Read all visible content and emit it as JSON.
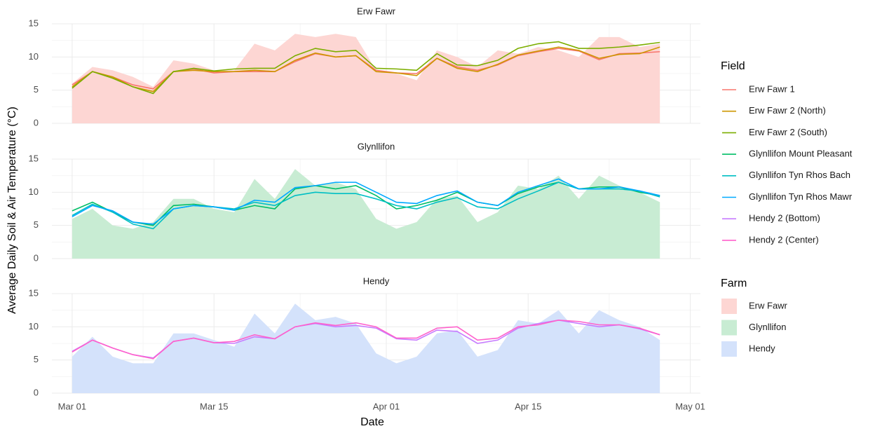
{
  "ylabel": "Average Daily Soil & Air Temperature (°C)",
  "xlabel": "Date",
  "legend": {
    "line_title": "Field",
    "area_title": "Farm"
  },
  "chart_data": [
    {
      "type": "line",
      "title": "Erw Fawr",
      "xlim": [
        "Feb 27",
        "May 02"
      ],
      "xticks": [
        "Mar 01",
        "Mar 15",
        "Apr 01",
        "Apr 15",
        "May 01"
      ],
      "ylim": [
        0,
        15
      ],
      "yticks": [
        0,
        5,
        10,
        15
      ],
      "grid": true,
      "x": [
        "Mar 01",
        "Mar 03",
        "Mar 05",
        "Mar 07",
        "Mar 09",
        "Mar 11",
        "Mar 13",
        "Mar 15",
        "Mar 17",
        "Mar 19",
        "Mar 21",
        "Mar 23",
        "Mar 25",
        "Mar 27",
        "Mar 29",
        "Mar 31",
        "Apr 02",
        "Apr 04",
        "Apr 06",
        "Apr 08",
        "Apr 10",
        "Apr 12",
        "Apr 14",
        "Apr 16",
        "Apr 18",
        "Apr 20",
        "Apr 22",
        "Apr 24",
        "Apr 26",
        "Apr 28"
      ],
      "area": {
        "name": "Erw Fawr",
        "color": "#fdd6d3",
        "values": [
          6,
          8.5,
          8,
          7,
          5.5,
          9.5,
          9,
          8,
          8,
          12,
          11,
          13.5,
          13,
          13.5,
          13,
          8,
          7.5,
          6.5,
          11,
          10,
          8.5,
          11,
          10.5,
          11.5,
          11,
          10,
          13,
          13,
          11.5,
          12
        ]
      },
      "series": [
        {
          "name": "Erw Fawr 1",
          "color": "#F8766D",
          "values": [
            5.8,
            7.8,
            7,
            5.8,
            5.2,
            7.8,
            8.2,
            7.6,
            7.8,
            7.8,
            7.8,
            9.3,
            10.5,
            10,
            10.2,
            8,
            7.6,
            7.5,
            9.8,
            8.5,
            8,
            8.8,
            10.2,
            10.8,
            11.3,
            10.9,
            9.6,
            10.5,
            10.6,
            10.8
          ]
        },
        {
          "name": "Erw Fawr 2 (North)",
          "color": "#CD9600",
          "values": [
            5.5,
            7.8,
            7,
            5.5,
            4.8,
            7.8,
            8,
            7.8,
            7.8,
            8,
            7.8,
            9.5,
            10.6,
            10,
            10.2,
            7.8,
            7.6,
            7.2,
            9.8,
            8.3,
            7.8,
            8.9,
            10.3,
            10.9,
            11.5,
            11,
            9.8,
            10.4,
            10.5,
            11.5
          ]
        },
        {
          "name": "Erw Fawr 2 (South)",
          "color": "#7CAE00",
          "values": [
            5.3,
            7.8,
            6.8,
            5.5,
            4.5,
            7.8,
            8.3,
            7.9,
            8.2,
            8.3,
            8.3,
            10.2,
            11.3,
            10.8,
            11,
            8.3,
            8.2,
            8,
            10.5,
            8.8,
            8.7,
            9.5,
            11.3,
            12,
            12.3,
            11.3,
            11.3,
            11.5,
            11.8,
            12.2
          ]
        }
      ]
    },
    {
      "type": "line",
      "title": "Glynllifon",
      "xlim": [
        "Feb 27",
        "May 02"
      ],
      "xticks": [
        "Mar 01",
        "Mar 15",
        "Apr 01",
        "Apr 15",
        "May 01"
      ],
      "ylim": [
        0,
        15
      ],
      "yticks": [
        0,
        5,
        10,
        15
      ],
      "grid": true,
      "x": [
        "Mar 01",
        "Mar 03",
        "Mar 05",
        "Mar 07",
        "Mar 09",
        "Mar 11",
        "Mar 13",
        "Mar 15",
        "Mar 17",
        "Mar 19",
        "Mar 21",
        "Mar 23",
        "Mar 25",
        "Mar 27",
        "Mar 29",
        "Mar 31",
        "Apr 02",
        "Apr 04",
        "Apr 06",
        "Apr 08",
        "Apr 10",
        "Apr 12",
        "Apr 14",
        "Apr 16",
        "Apr 18",
        "Apr 20",
        "Apr 22",
        "Apr 24",
        "Apr 26",
        "Apr 28"
      ],
      "area": {
        "name": "Glynllifon",
        "color": "#c8ecd3",
        "values": [
          6,
          7.5,
          5,
          4.5,
          5.5,
          9,
          9,
          7.5,
          7,
          12,
          9,
          13.5,
          11,
          11.5,
          10.5,
          6,
          4.5,
          5.5,
          9,
          9.5,
          5.5,
          7,
          11,
          10.5,
          12.5,
          9,
          12.5,
          11,
          10,
          8.5
        ]
      },
      "series": [
        {
          "name": "Glynllifon Mount Pleasant",
          "color": "#00BE67",
          "values": [
            7.2,
            8.5,
            7,
            5.5,
            5,
            8,
            8.2,
            7.8,
            7.3,
            8,
            7.5,
            10.5,
            11,
            10.5,
            11,
            9.5,
            7.5,
            8,
            8.8,
            10,
            8.5,
            8,
            9.8,
            10.8,
            11.5,
            10.5,
            10.8,
            10.8,
            10,
            9.5
          ]
        },
        {
          "name": "Glynllifon Tyn Rhos Bach",
          "color": "#00BFC4",
          "values": [
            6.5,
            8.2,
            7,
            5.2,
            4.5,
            7.5,
            8,
            7.8,
            7.5,
            8.5,
            8,
            9.5,
            10,
            9.8,
            9.8,
            9,
            8,
            7.5,
            8.5,
            9.2,
            7.8,
            7.5,
            9,
            10.2,
            11.5,
            10.5,
            10.5,
            10.5,
            10.2,
            9.3
          ]
        },
        {
          "name": "Glynllifon Tyn Rhos Mawr",
          "color": "#00A9FF",
          "values": [
            6.3,
            8,
            7.2,
            5.5,
            5.2,
            7.5,
            8,
            7.8,
            7.3,
            8.8,
            8.5,
            10.7,
            11,
            11.5,
            11.5,
            10,
            8.5,
            8.3,
            9.5,
            10.2,
            8.5,
            8,
            10,
            11,
            12,
            10.5,
            10.5,
            10.8,
            10.2,
            9.5
          ]
        }
      ]
    },
    {
      "type": "line",
      "title": "Hendy",
      "xlim": [
        "Feb 27",
        "May 02"
      ],
      "xticks": [
        "Mar 01",
        "Mar 15",
        "Apr 01",
        "Apr 15",
        "May 01"
      ],
      "ylim": [
        0,
        15
      ],
      "yticks": [
        0,
        5,
        10,
        15
      ],
      "grid": true,
      "x": [
        "Mar 01",
        "Mar 03",
        "Mar 05",
        "Mar 07",
        "Mar 09",
        "Mar 11",
        "Mar 13",
        "Mar 15",
        "Mar 17",
        "Mar 19",
        "Mar 21",
        "Mar 23",
        "Mar 25",
        "Mar 27",
        "Mar 29",
        "Mar 31",
        "Apr 02",
        "Apr 04",
        "Apr 06",
        "Apr 08",
        "Apr 10",
        "Apr 12",
        "Apr 14",
        "Apr 16",
        "Apr 18",
        "Apr 20",
        "Apr 22",
        "Apr 24",
        "Apr 26",
        "Apr 28"
      ],
      "area": {
        "name": "Hendy",
        "color": "#d4e2fb",
        "values": [
          5.5,
          8.5,
          5.5,
          4.5,
          4.5,
          9,
          9,
          8,
          7,
          12,
          9,
          13.5,
          11,
          11.5,
          10.5,
          6,
          4.5,
          5.5,
          9,
          9.5,
          5.5,
          6.5,
          11,
          10.5,
          12.5,
          9,
          12.5,
          11,
          10,
          8
        ]
      },
      "series": [
        {
          "name": "Hendy 2 (Bottom)",
          "color": "#C77CFF",
          "values": [
            6.3,
            8,
            6.8,
            5.8,
            5.3,
            7.8,
            8.3,
            7.6,
            7.5,
            8.5,
            8.2,
            10,
            10.5,
            10,
            10.2,
            9.8,
            8.2,
            8,
            9.5,
            9.3,
            7.5,
            8,
            9.8,
            10.5,
            11,
            10.5,
            10,
            10.3,
            9.7,
            8.8
          ]
        },
        {
          "name": "Hendy 2 (Center)",
          "color": "#FF61CC",
          "values": [
            6.2,
            8,
            6.8,
            5.8,
            5.2,
            7.8,
            8.3,
            7.6,
            7.8,
            8.8,
            8.2,
            10,
            10.6,
            10.2,
            10.6,
            10,
            8.3,
            8.3,
            9.8,
            10,
            8,
            8.3,
            10,
            10.3,
            11,
            10.8,
            10.3,
            10.3,
            9.8,
            8.8
          ]
        }
      ]
    }
  ]
}
